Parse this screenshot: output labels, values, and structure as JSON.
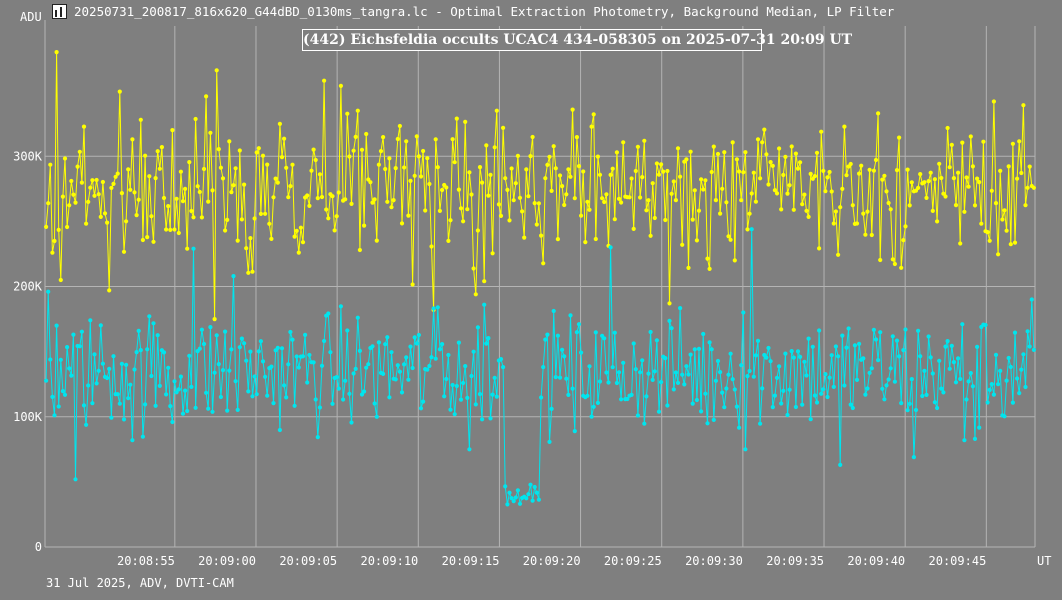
{
  "window": {
    "title": "20250731_200817_816x620_G44dBD_0130ms_tangra.lc - Optimal Extraction Photometry, Background Median, LP Filter",
    "icon": "lightcurve-app-icon"
  },
  "footer": {
    "info": "31 Jul 2025, ADV, DVTI-CAM"
  },
  "colors": {
    "background": "#7f7f7f",
    "grid": "#b4b4b4",
    "target": "#ffff00",
    "comparison": "#00e5ee",
    "text": "#ffffff"
  },
  "chart_data": {
    "type": "line",
    "title": "(442) Eichsfeldia occults UCAC4 434-058305 on 2025-07-31  20:09 UT",
    "ylabel": "ADU",
    "xlabel": "UT",
    "ylim": [
      0,
      400000
    ],
    "yticks": [
      {
        "value": 0,
        "label": "0"
      },
      {
        "value": 100000,
        "label": "100K"
      },
      {
        "value": 200000,
        "label": "200K"
      },
      {
        "value": 300000,
        "label": "300K"
      }
    ],
    "xlim_seconds": [
      47.0,
      108.0
    ],
    "xticks": [
      {
        "value": 55,
        "label": "20:08:55"
      },
      {
        "value": 60,
        "label": "20:09:00"
      },
      {
        "value": 65,
        "label": "20:09:05"
      },
      {
        "value": 70,
        "label": "20:09:10"
      },
      {
        "value": 75,
        "label": "20:09:15"
      },
      {
        "value": 80,
        "label": "20:09:20"
      },
      {
        "value": 85,
        "label": "20:09:25"
      },
      {
        "value": 90,
        "label": "20:09:30"
      },
      {
        "value": 95,
        "label": "20:09:35"
      },
      {
        "value": 100,
        "label": "20:09:40"
      },
      {
        "value": 105,
        "label": "20:09:45"
      }
    ],
    "grid": true,
    "series": [
      {
        "role": "target",
        "color": "#ffff00",
        "baseline_adu": 275000,
        "noise_adu": 26000,
        "occultation": null,
        "spikes": [
          {
            "t": 47.72,
            "adu": 380000
          },
          {
            "t": 48.0,
            "adu": 205000
          },
          {
            "t": 50.9,
            "adu": 345000
          },
          {
            "t": 51.0,
            "adu": 197000
          },
          {
            "t": 52.9,
            "adu": 328000
          },
          {
            "t": 55.8,
            "adu": 229000
          },
          {
            "t": 57.6,
            "adu": 366000
          },
          {
            "t": 57.5,
            "adu": 175000
          },
          {
            "t": 62.6,
            "adu": 226000
          },
          {
            "t": 64.2,
            "adu": 358000
          },
          {
            "t": 65.2,
            "adu": 354000
          },
          {
            "t": 66.3,
            "adu": 335000
          },
          {
            "t": 66.4,
            "adu": 228000
          },
          {
            "t": 71.0,
            "adu": 182000
          },
          {
            "t": 73.5,
            "adu": 194000
          },
          {
            "t": 74.9,
            "adu": 335000
          },
          {
            "t": 85.5,
            "adu": 187000
          },
          {
            "t": 89.5,
            "adu": 220000
          },
          {
            "t": 103.4,
            "adu": 233000
          },
          {
            "t": 105.5,
            "adu": 342000
          }
        ]
      },
      {
        "role": "comparison",
        "color": "#00e5ee",
        "baseline_adu": 135000,
        "noise_adu": 22000,
        "occultation": {
          "start": 75.25,
          "end": 77.5,
          "level_adu": 41000
        },
        "spikes": [
          {
            "t": 47.2,
            "adu": 196000
          },
          {
            "t": 47.7,
            "adu": 170000
          },
          {
            "t": 48.9,
            "adu": 52000
          },
          {
            "t": 52.4,
            "adu": 82000
          },
          {
            "t": 54.8,
            "adu": 96000
          },
          {
            "t": 56.2,
            "adu": 229000
          },
          {
            "t": 58.6,
            "adu": 208000
          },
          {
            "t": 71.2,
            "adu": 184000
          },
          {
            "t": 73.2,
            "adu": 75000
          },
          {
            "t": 74.0,
            "adu": 186000
          },
          {
            "t": 74.6,
            "adu": 117000
          },
          {
            "t": 79.7,
            "adu": 89000
          },
          {
            "t": 81.9,
            "adu": 230000
          },
          {
            "t": 87.8,
            "adu": 95000
          },
          {
            "t": 90.0,
            "adu": 180000
          },
          {
            "t": 90.6,
            "adu": 244000
          },
          {
            "t": 90.2,
            "adu": 75000
          },
          {
            "t": 96.0,
            "adu": 63000
          },
          {
            "t": 100.5,
            "adu": 69000
          },
          {
            "t": 103.6,
            "adu": 82000
          },
          {
            "t": 104.3,
            "adu": 83000
          },
          {
            "t": 106.0,
            "adu": 101000
          },
          {
            "t": 107.8,
            "adu": 190000
          }
        ]
      }
    ]
  }
}
